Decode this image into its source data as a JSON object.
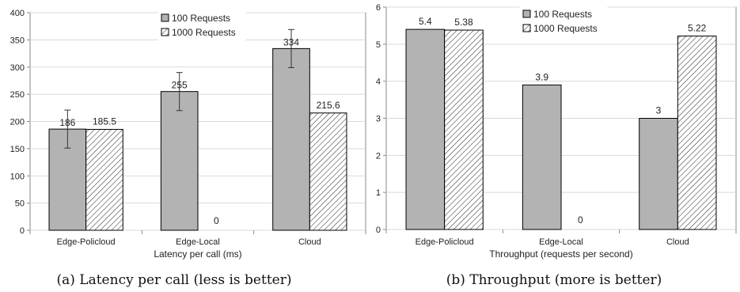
{
  "chart_data": [
    {
      "type": "bar",
      "categories": [
        "Edge-Policloud",
        "Edge-Local",
        "Cloud"
      ],
      "series": [
        {
          "name": "100 Requests",
          "values": [
            186,
            255,
            334
          ],
          "error": [
            35,
            35,
            35
          ]
        },
        {
          "name": "1000 Requests",
          "values": [
            185.5,
            0,
            215.6
          ]
        }
      ],
      "data_labels": [
        [
          "186",
          "255",
          "334"
        ],
        [
          "185.5",
          "0",
          "215.6"
        ]
      ],
      "xlabel": "Latency per call (ms)",
      "ylabel": "",
      "ylim": [
        0,
        400
      ],
      "yticks": [
        0,
        50,
        100,
        150,
        200,
        250,
        300,
        350,
        400
      ],
      "grid": true,
      "legend": "top-center",
      "caption": "(a) Latency per call (less is better)"
    },
    {
      "type": "bar",
      "categories": [
        "Edge-Policloud",
        "Edge-Local",
        "Cloud"
      ],
      "series": [
        {
          "name": "100 Requests",
          "values": [
            5.4,
            3.9,
            3
          ]
        },
        {
          "name": "1000 Requests",
          "values": [
            5.38,
            0,
            5.22
          ]
        }
      ],
      "data_labels": [
        [
          "5.4",
          "3.9",
          "3"
        ],
        [
          "5.38",
          "0",
          "5.22"
        ]
      ],
      "xlabel": "Throughput (requests per second)",
      "ylabel": "",
      "ylim": [
        0,
        6
      ],
      "yticks": [
        0,
        1,
        2,
        3,
        4,
        5,
        6
      ],
      "grid": true,
      "legend": "top-center",
      "caption": "(b) Throughput (more is better)"
    }
  ],
  "colors": {
    "bar_fill": "#b3b3b3",
    "hatch_fill": "#ffffff",
    "stroke": "#000000",
    "grid": "#d9d9d9"
  }
}
